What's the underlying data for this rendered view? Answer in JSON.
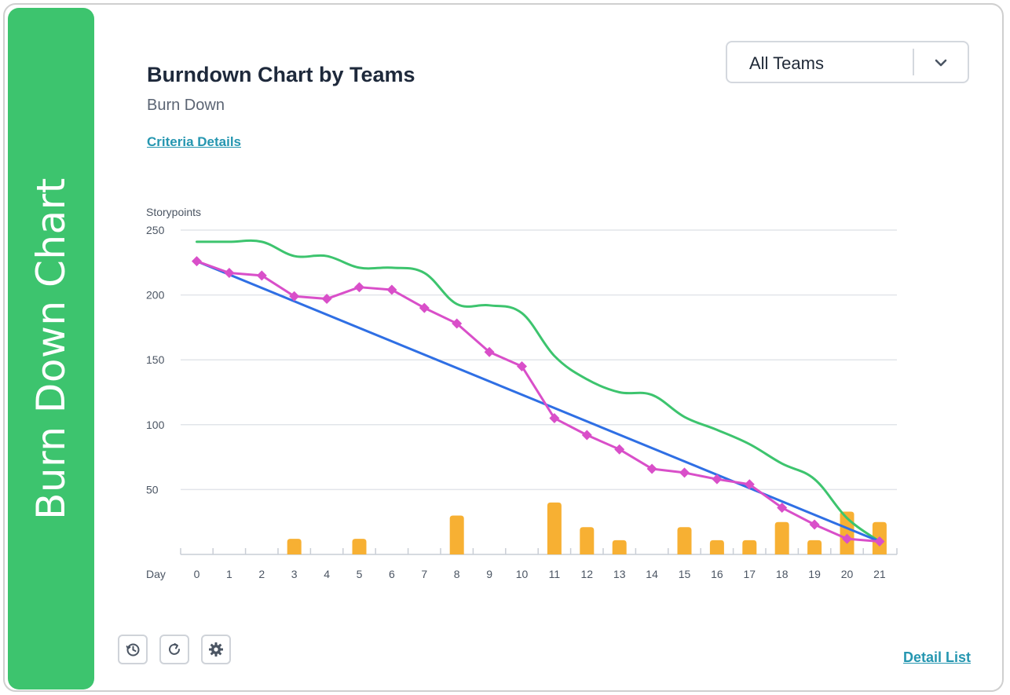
{
  "banner": {
    "text": "Burn Down Chart"
  },
  "header": {
    "title": "Burndown Chart by Teams",
    "subtitle": "Burn Down",
    "criteria_link": "Criteria Details"
  },
  "team_select": {
    "value": "All Teams"
  },
  "footer": {
    "detail_link": "Detail List",
    "buttons": [
      "history-icon",
      "refresh-icon",
      "gear-icon"
    ]
  },
  "colors": {
    "banner": "#3dc46e",
    "remaining": "#3dc46e",
    "ideal": "#2f6fe4",
    "actual": "#d94fc9",
    "completed": "#f7b033",
    "link": "#2596b0"
  },
  "chart_data": {
    "type": "line",
    "ylabel": "Storypoints",
    "xlabel": "Day",
    "x": [
      0,
      1,
      2,
      3,
      4,
      5,
      6,
      7,
      8,
      9,
      10,
      11,
      12,
      13,
      14,
      15,
      16,
      17,
      18,
      19,
      20,
      21
    ],
    "ylim": [
      0,
      250
    ],
    "yticks": [
      50,
      100,
      150,
      200,
      250
    ],
    "grid": true,
    "series": [
      {
        "key": "remaining",
        "kind": "line",
        "values": [
          241,
          241,
          241,
          230,
          230,
          221,
          221,
          217,
          193,
          192,
          186,
          153,
          135,
          125,
          123,
          106,
          96,
          85,
          70,
          58,
          28,
          10
        ]
      },
      {
        "key": "ideal",
        "kind": "line",
        "values": [
          226,
          215.7,
          205.4,
          195.1,
          184.9,
          174.6,
          164.3,
          154,
          143.7,
          133.4,
          123.1,
          112.9,
          102.6,
          92.3,
          82,
          71.7,
          61.4,
          51.1,
          40.9,
          30.6,
          20.3,
          10
        ]
      },
      {
        "key": "actual",
        "kind": "line-markers",
        "values": [
          226,
          217,
          215,
          199,
          197,
          206,
          204,
          190,
          178,
          156,
          145,
          105,
          92,
          81,
          66,
          63,
          58,
          54,
          36,
          23,
          12,
          10
        ]
      },
      {
        "key": "completed",
        "kind": "bar",
        "values": [
          0,
          0,
          0,
          12,
          0,
          12,
          0,
          0,
          30,
          0,
          0,
          40,
          21,
          11,
          0,
          21,
          11,
          11,
          25,
          11,
          33,
          25
        ]
      }
    ]
  }
}
